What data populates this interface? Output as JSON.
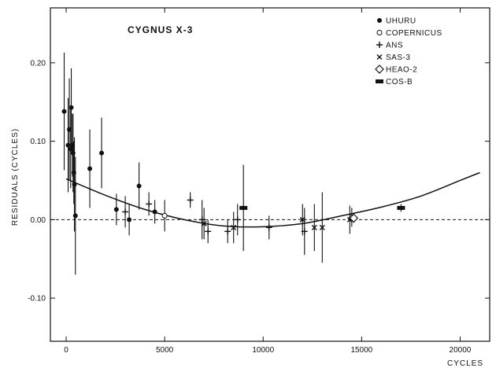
{
  "chart_data": {
    "type": "scatter",
    "title": "CYGNUS X-3",
    "xlabel": "CYCLES",
    "ylabel": "RESIDUALS (CYCLES)",
    "xlim": [
      -800,
      21500
    ],
    "ylim": [
      -0.155,
      0.27
    ],
    "x_ticks": [
      0,
      5000,
      10000,
      15000,
      20000
    ],
    "x_tick_labels": [
      "0",
      "5000",
      "10000",
      "15000",
      "20000"
    ],
    "y_ticks": [
      0.2,
      0.1,
      0.0,
      -0.1
    ],
    "y_tick_labels": [
      "0.20",
      "0.10",
      "0.00",
      "-0.10"
    ],
    "grid": false,
    "legend_position": "top-right",
    "legend": [
      {
        "name": "UHURU",
        "marker": "filled-circle"
      },
      {
        "name": "COPERNICUS",
        "marker": "open-circle"
      },
      {
        "name": "ANS",
        "marker": "plus"
      },
      {
        "name": "SAS-3",
        "marker": "cross"
      },
      {
        "name": "HEAO-2",
        "marker": "diamond"
      },
      {
        "name": "COS-B",
        "marker": "filled-rect"
      }
    ],
    "reference_line": {
      "y": 0.0,
      "style": "dashed"
    },
    "fit_curve": {
      "style": "solid",
      "x": [
        0,
        2000,
        4000,
        6000,
        8000,
        10000,
        12000,
        14000,
        16000,
        18000,
        20000,
        21000
      ],
      "y": [
        0.052,
        0.031,
        0.013,
        0.0,
        -0.008,
        -0.009,
        -0.005,
        0.005,
        0.016,
        0.03,
        0.05,
        0.06
      ]
    },
    "series": [
      {
        "name": "UHURU",
        "marker": "filled-circle",
        "points": [
          {
            "x": -100,
            "y": 0.138,
            "err": 0.075
          },
          {
            "x": 100,
            "y": 0.095,
            "err": 0.06
          },
          {
            "x": 160,
            "y": 0.115,
            "err": 0.065
          },
          {
            "x": 230,
            "y": 0.09,
            "err": 0.05
          },
          {
            "x": 260,
            "y": 0.143,
            "err": 0.05
          },
          {
            "x": 320,
            "y": 0.095,
            "err": 0.04
          },
          {
            "x": 350,
            "y": 0.085,
            "err": 0.05
          },
          {
            "x": 390,
            "y": 0.06,
            "err": 0.04
          },
          {
            "x": 420,
            "y": 0.045,
            "err": 0.06
          },
          {
            "x": 470,
            "y": 0.005,
            "err": 0.075
          },
          {
            "x": 1200,
            "y": 0.065,
            "err": 0.05
          },
          {
            "x": 1800,
            "y": 0.085,
            "err": 0.045
          },
          {
            "x": 2550,
            "y": 0.013,
            "err": 0.02
          },
          {
            "x": 3200,
            "y": 0.0,
            "err": 0.02
          },
          {
            "x": 3700,
            "y": 0.043,
            "err": 0.03
          },
          {
            "x": 4500,
            "y": 0.01,
            "err": 0.015
          }
        ]
      },
      {
        "name": "COPERNICUS",
        "marker": "open-circle",
        "points": [
          {
            "x": 5000,
            "y": 0.005,
            "err": 0.02
          },
          {
            "x": 14500,
            "y": 0.003,
            "err": 0.012
          }
        ]
      },
      {
        "name": "ANS",
        "marker": "plus",
        "points": [
          {
            "x": 3000,
            "y": 0.01,
            "err": 0.02
          },
          {
            "x": 4200,
            "y": 0.02,
            "err": 0.015
          },
          {
            "x": 6300,
            "y": 0.025,
            "err": 0.01
          },
          {
            "x": 6900,
            "y": 0.0,
            "err": 0.025
          },
          {
            "x": 7200,
            "y": -0.015,
            "err": 0.015
          },
          {
            "x": 8200,
            "y": -0.015,
            "err": 0.015
          },
          {
            "x": 8700,
            "y": 0.0,
            "err": 0.02
          },
          {
            "x": 10300,
            "y": -0.01,
            "err": 0.015
          },
          {
            "x": 12100,
            "y": -0.015,
            "err": 0.03
          }
        ]
      },
      {
        "name": "SAS-3",
        "marker": "cross",
        "points": [
          {
            "x": 7000,
            "y": -0.005,
            "err": 0.02
          },
          {
            "x": 8500,
            "y": -0.01,
            "err": 0.02
          },
          {
            "x": 12000,
            "y": 0.0,
            "err": 0.02
          },
          {
            "x": 12600,
            "y": -0.01,
            "err": 0.03
          },
          {
            "x": 13000,
            "y": -0.01,
            "err": 0.045
          },
          {
            "x": 14400,
            "y": 0.0,
            "err": 0.018
          }
        ]
      },
      {
        "name": "HEAO-2",
        "marker": "diamond",
        "points": [
          {
            "x": 14600,
            "y": 0.002,
            "err": 0.006
          }
        ]
      },
      {
        "name": "COS-B",
        "marker": "filled-rect",
        "points": [
          {
            "x": 9000,
            "y": 0.015,
            "err": 0.055
          },
          {
            "x": 17000,
            "y": 0.015,
            "err": 0.005
          }
        ]
      }
    ]
  }
}
